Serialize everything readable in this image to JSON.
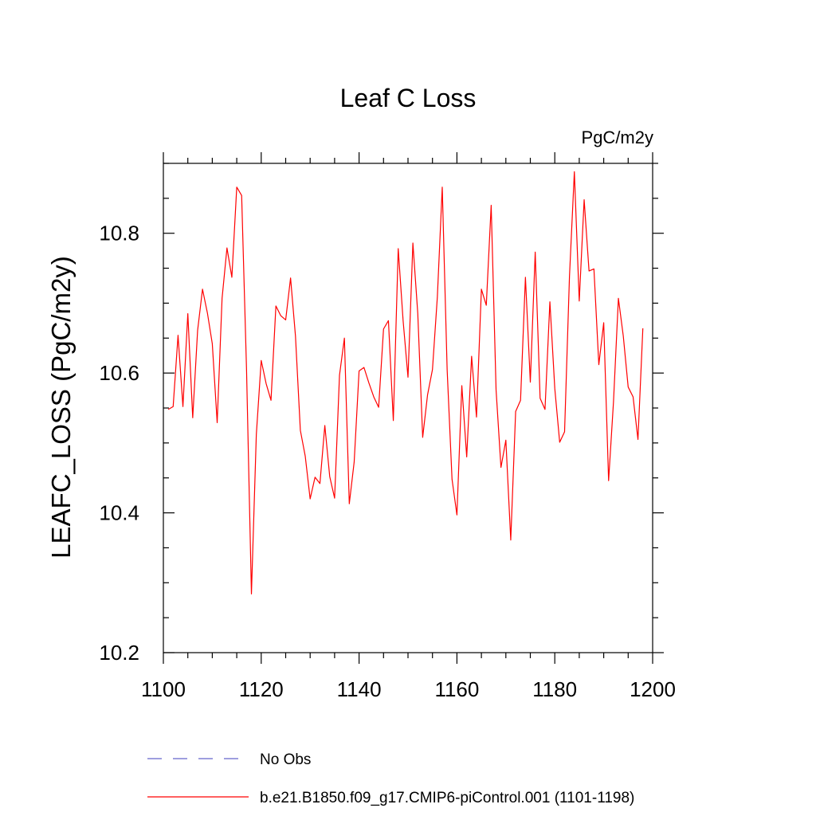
{
  "chart_data": {
    "type": "line",
    "title": "Leaf C Loss",
    "units_label": "PgC/m2y",
    "ylabel": "LEAFC_LOSS  (PgC/m2y)",
    "xlabel": "",
    "xlim": [
      1100,
      1200
    ],
    "ylim": [
      10.2,
      10.9
    ],
    "xticks": [
      1100,
      1120,
      1140,
      1160,
      1180,
      1200
    ],
    "xtick_labels": [
      "1100",
      "1120",
      "1140",
      "1160",
      "1180",
      "1200"
    ],
    "yticks": [
      10.2,
      10.4,
      10.6,
      10.8
    ],
    "ytick_labels": [
      "10.2",
      "10.4",
      "10.6",
      "10.8"
    ],
    "grid": false,
    "legend_position": "bottom-left",
    "series": [
      {
        "name": "b.e21.B1850.f09_g17.CMIP6-piControl.001 (1101-1198)",
        "color": "#ff0000",
        "dash": "solid",
        "x": [
          1101,
          1102,
          1103,
          1104,
          1105,
          1106,
          1107,
          1108,
          1109,
          1110,
          1111,
          1112,
          1113,
          1114,
          1115,
          1116,
          1117,
          1118,
          1119,
          1120,
          1121,
          1122,
          1123,
          1124,
          1125,
          1126,
          1127,
          1128,
          1129,
          1130,
          1131,
          1132,
          1133,
          1134,
          1135,
          1136,
          1137,
          1138,
          1139,
          1140,
          1141,
          1142,
          1143,
          1144,
          1145,
          1146,
          1147,
          1148,
          1149,
          1150,
          1151,
          1152,
          1153,
          1154,
          1155,
          1156,
          1157,
          1158,
          1159,
          1160,
          1161,
          1162,
          1163,
          1164,
          1165,
          1166,
          1167,
          1168,
          1169,
          1170,
          1171,
          1172,
          1173,
          1174,
          1175,
          1176,
          1177,
          1178,
          1179,
          1180,
          1181,
          1182,
          1183,
          1184,
          1185,
          1186,
          1187,
          1188,
          1189,
          1190,
          1191,
          1192,
          1193,
          1194,
          1195,
          1196,
          1197,
          1198
        ],
        "values": [
          10.548,
          10.552,
          10.654,
          10.552,
          10.685,
          10.536,
          10.661,
          10.72,
          10.686,
          10.642,
          10.529,
          10.707,
          10.779,
          10.737,
          10.866,
          10.854,
          10.605,
          10.284,
          10.512,
          10.618,
          10.585,
          10.561,
          10.696,
          10.682,
          10.676,
          10.736,
          10.653,
          10.518,
          10.481,
          10.42,
          10.451,
          10.442,
          10.525,
          10.452,
          10.421,
          10.597,
          10.65,
          10.413,
          10.473,
          10.603,
          10.608,
          10.586,
          10.566,
          10.551,
          10.663,
          10.675,
          10.532,
          10.778,
          10.675,
          10.594,
          10.786,
          10.685,
          10.508,
          10.569,
          10.605,
          10.709,
          10.866,
          10.605,
          10.448,
          10.397,
          10.582,
          10.48,
          10.624,
          10.537,
          10.72,
          10.697,
          10.84,
          10.576,
          10.465,
          10.504,
          10.361,
          10.545,
          10.561,
          10.737,
          10.587,
          10.773,
          10.564,
          10.548,
          10.702,
          10.578,
          10.501,
          10.516,
          10.738,
          10.888,
          10.703,
          10.848,
          10.746,
          10.749,
          10.612,
          10.672,
          10.446,
          10.559,
          10.707,
          10.653,
          10.58,
          10.566,
          10.505,
          10.664
        ]
      }
    ],
    "legend": [
      {
        "label": "No Obs",
        "color": "#6666cc",
        "dash": "dashed"
      },
      {
        "label": "b.e21.B1850.f09_g17.CMIP6-piControl.001 (1101-1198)",
        "color": "#ff0000",
        "dash": "solid"
      }
    ]
  }
}
